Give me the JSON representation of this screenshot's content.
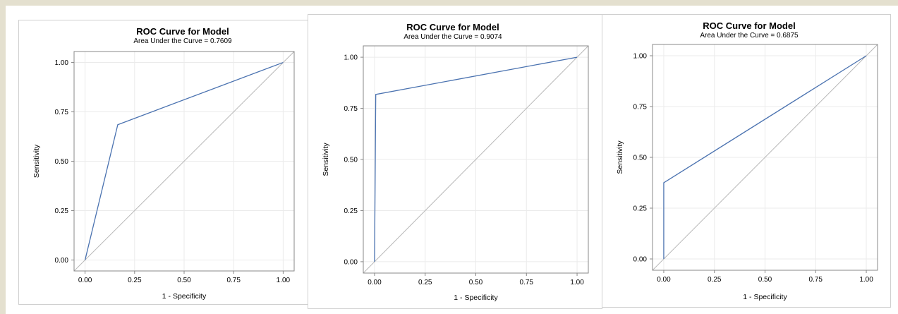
{
  "chart_data": [
    {
      "type": "line",
      "title": "ROC Curve for Model",
      "subtitle": "Area Under the Curve = 0.7609",
      "xlabel": "1 - Specificity",
      "ylabel": "Sensitivity",
      "xlim": [
        0,
        1
      ],
      "ylim": [
        0,
        1
      ],
      "xticks": [
        "0.00",
        "0.25",
        "0.50",
        "0.75",
        "1.00"
      ],
      "yticks": [
        "0.00",
        "0.25",
        "0.50",
        "0.75",
        "1.00"
      ],
      "grid": true,
      "series": [
        {
          "x": [
            0,
            0.165,
            1
          ],
          "y": [
            0,
            0.685,
            1
          ],
          "color": "#4a72b0"
        }
      ],
      "reference_line": {
        "x": [
          0,
          1
        ],
        "y": [
          0,
          1
        ],
        "color": "#b8b8b8"
      }
    },
    {
      "type": "line",
      "title": "ROC Curve for Model",
      "subtitle": "Area Under the Curve = 0.9074",
      "xlabel": "1 - Specificity",
      "ylabel": "Sensitivity",
      "xlim": [
        0,
        1
      ],
      "ylim": [
        0,
        1
      ],
      "xticks": [
        "0.00",
        "0.25",
        "0.50",
        "0.75",
        "1.00"
      ],
      "yticks": [
        "0.00",
        "0.25",
        "0.50",
        "0.75",
        "1.00"
      ],
      "grid": true,
      "series": [
        {
          "x": [
            0,
            0.006,
            1
          ],
          "y": [
            0,
            0.818,
            1
          ],
          "color": "#4a72b0"
        }
      ],
      "reference_line": {
        "x": [
          0,
          1
        ],
        "y": [
          0,
          1
        ],
        "color": "#b8b8b8"
      }
    },
    {
      "type": "line",
      "title": "ROC Curve for Model",
      "subtitle": "Area Under the Curve = 0.6875",
      "xlabel": "1 - Specificity",
      "ylabel": "Sensitivity",
      "xlim": [
        0,
        1
      ],
      "ylim": [
        0,
        1
      ],
      "xticks": [
        "0.00",
        "0.25",
        "0.50",
        "0.75",
        "1.00"
      ],
      "yticks": [
        "0.00",
        "0.25",
        "0.50",
        "0.75",
        "1.00"
      ],
      "grid": true,
      "series": [
        {
          "x": [
            0,
            0,
            1
          ],
          "y": [
            0,
            0.375,
            1
          ],
          "color": "#4a72b0"
        }
      ],
      "reference_line": {
        "x": [
          0,
          1
        ],
        "y": [
          0,
          1
        ],
        "color": "#b8b8b8"
      }
    }
  ]
}
